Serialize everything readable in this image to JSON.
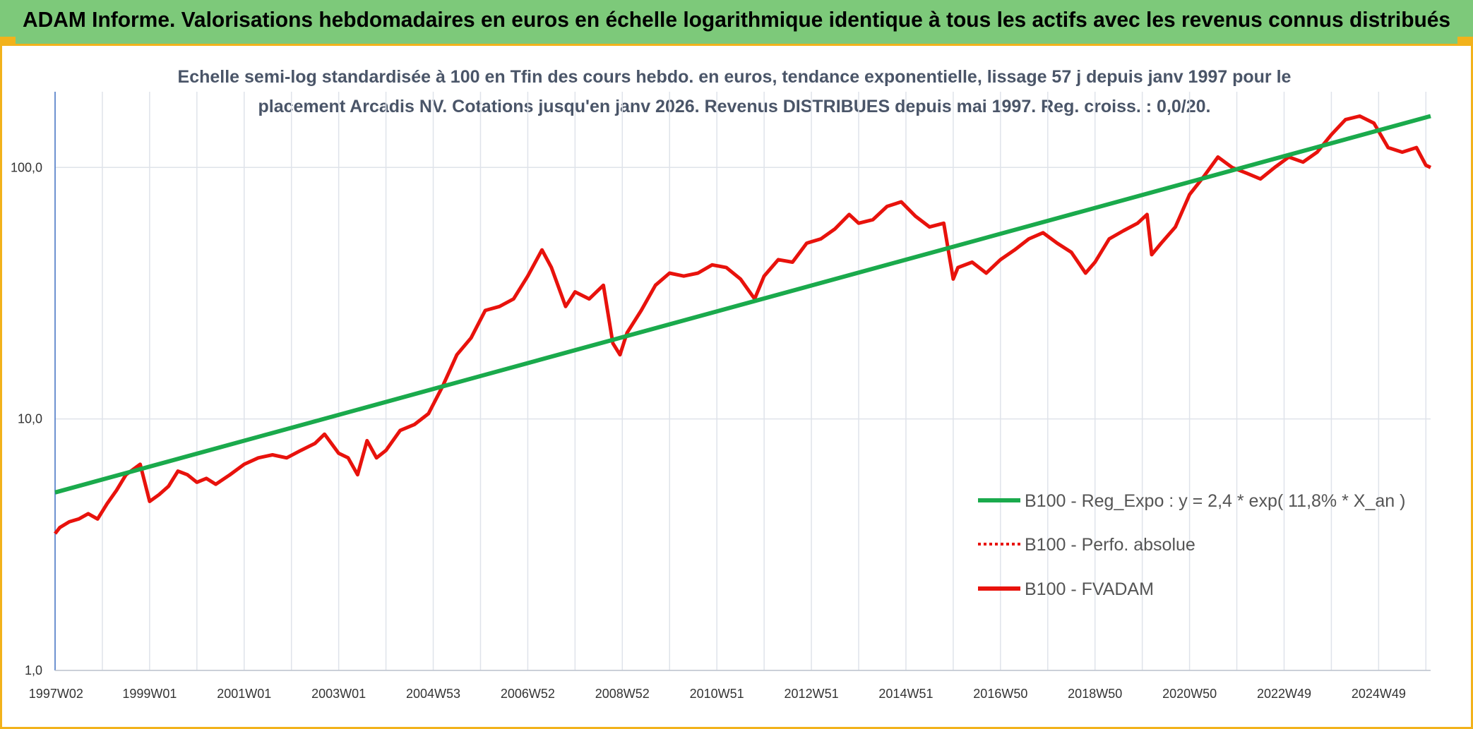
{
  "header": {
    "title": "ADAM Informe. Valorisations hebdomadaires en euros en échelle logarithmique identique à tous les actifs avec les revenus connus distribués"
  },
  "colors": {
    "header_bg": "#7dc97a",
    "accent": "#f2b21b",
    "regression": "#1aaa4c",
    "fvadam": "#e8120c",
    "perfo": "#e8120c",
    "grid": "#dfe3ea",
    "axis": "#4472c4"
  },
  "chart_data": {
    "type": "line",
    "title": "Echelle semi-log standardisée à 100 en Tfin des cours hebdo. en euros, tendance exponentielle, lissage 57 j depuis janv 1997 pour le placement Arcadis NV. Cotations jusqu'en janv 2026. Revenus DISTRIBUES depuis mai 1997. Reg. croiss. : 0,0/20.",
    "y_scale": "log",
    "ylim": [
      1,
      200
    ],
    "xlim": [
      1997.0,
      2026.1
    ],
    "y_ticks": [
      {
        "value": 1,
        "label": "1,0"
      },
      {
        "value": 10,
        "label": "10,0"
      },
      {
        "value": 100,
        "label": "100,0"
      }
    ],
    "x_ticks": [
      {
        "value": 1997.02,
        "label": "1997W02"
      },
      {
        "value": 1999.0,
        "label": "1999W01"
      },
      {
        "value": 2001.0,
        "label": "2001W01"
      },
      {
        "value": 2003.0,
        "label": "2003W01"
      },
      {
        "value": 2005.0,
        "label": "2004W53"
      },
      {
        "value": 2007.0,
        "label": "2006W52"
      },
      {
        "value": 2009.0,
        "label": "2008W52"
      },
      {
        "value": 2011.0,
        "label": "2010W51"
      },
      {
        "value": 2013.0,
        "label": "2012W51"
      },
      {
        "value": 2015.0,
        "label": "2014W51"
      },
      {
        "value": 2017.0,
        "label": "2016W50"
      },
      {
        "value": 2019.0,
        "label": "2018W50"
      },
      {
        "value": 2021.0,
        "label": "2020W50"
      },
      {
        "value": 2023.0,
        "label": "2022W49"
      },
      {
        "value": 2025.0,
        "label": "2024W49"
      }
    ],
    "grid": "vertical and horizontal",
    "legend_position": "bottom-right",
    "series": [
      {
        "name": "B100 - Reg_Expo : y = 2,4 * exp( 11,8% *  X_an )",
        "style": "solid",
        "color": "#1aaa4c",
        "x": [
          1997.0,
          2026.1
        ],
        "y": [
          5.1,
          160
        ]
      },
      {
        "name": "B100 - Perfo. absolue",
        "style": "dotted",
        "color": "#e8120c",
        "x": [],
        "y": []
      },
      {
        "name": "B100 - FVADAM",
        "style": "solid",
        "color": "#e8120c",
        "x": [
          1997.0,
          1997.1,
          1997.3,
          1997.5,
          1997.7,
          1997.9,
          1998.1,
          1998.3,
          1998.5,
          1998.8,
          1999.0,
          1999.2,
          1999.4,
          1999.6,
          1999.8,
          2000.0,
          2000.2,
          2000.4,
          2000.7,
          2001.0,
          2001.3,
          2001.6,
          2001.9,
          2002.2,
          2002.5,
          2002.7,
          2003.0,
          2003.2,
          2003.4,
          2003.6,
          2003.8,
          2004.0,
          2004.3,
          2004.6,
          2004.9,
          2005.2,
          2005.5,
          2005.8,
          2006.1,
          2006.4,
          2006.7,
          2007.0,
          2007.3,
          2007.5,
          2007.8,
          2008.0,
          2008.3,
          2008.6,
          2008.8,
          2008.95,
          2009.1,
          2009.4,
          2009.7,
          2010.0,
          2010.3,
          2010.6,
          2010.9,
          2011.2,
          2011.5,
          2011.8,
          2012.0,
          2012.3,
          2012.6,
          2012.9,
          2013.2,
          2013.5,
          2013.8,
          2014.0,
          2014.3,
          2014.6,
          2014.9,
          2015.2,
          2015.5,
          2015.8,
          2016.0,
          2016.1,
          2016.4,
          2016.7,
          2017.0,
          2017.3,
          2017.6,
          2017.9,
          2018.2,
          2018.5,
          2018.8,
          2019.0,
          2019.3,
          2019.6,
          2019.9,
          2020.1,
          2020.2,
          2020.4,
          2020.7,
          2021.0,
          2021.3,
          2021.6,
          2021.9,
          2022.2,
          2022.5,
          2022.8,
          2023.1,
          2023.4,
          2023.7,
          2024.0,
          2024.3,
          2024.6,
          2024.9,
          2025.2,
          2025.5,
          2025.8,
          2026.0,
          2026.1
        ],
        "y": [
          3.5,
          3.7,
          3.9,
          4.0,
          4.2,
          4.0,
          4.6,
          5.2,
          6.0,
          6.6,
          4.7,
          5.0,
          5.4,
          6.2,
          6.0,
          5.6,
          5.8,
          5.5,
          6.0,
          6.6,
          7.0,
          7.2,
          7.0,
          7.5,
          8.0,
          8.7,
          7.3,
          7.0,
          6.0,
          8.2,
          7.0,
          7.5,
          9.0,
          9.5,
          10.5,
          13.5,
          18.0,
          21.0,
          27.0,
          28.0,
          30.0,
          37.0,
          47.0,
          40.0,
          28.0,
          32.0,
          30.0,
          34.0,
          20.0,
          18.0,
          22.0,
          27.0,
          34.0,
          38.0,
          37.0,
          38.0,
          41.0,
          40.0,
          36.0,
          30.0,
          37.0,
          43.0,
          42.0,
          50.0,
          52.0,
          57.0,
          65.0,
          60.0,
          62.0,
          70.0,
          73.0,
          64.0,
          58.0,
          60.0,
          36.0,
          40.0,
          42.0,
          38.0,
          43.0,
          47.0,
          52.0,
          55.0,
          50.0,
          46.0,
          38.0,
          42.0,
          52.0,
          56.0,
          60.0,
          65.0,
          45.0,
          50.0,
          58.0,
          78.0,
          92.0,
          110.0,
          100.0,
          95.0,
          90.0,
          100.0,
          110.0,
          105.0,
          115.0,
          135.0,
          155.0,
          160.0,
          150.0,
          120.0,
          115.0,
          120.0,
          102.0,
          100.0
        ]
      }
    ]
  }
}
